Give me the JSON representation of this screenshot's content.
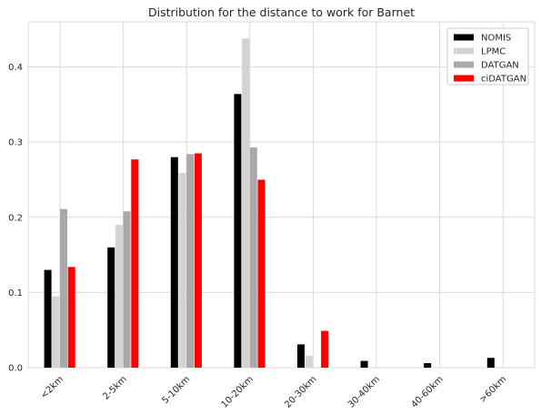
{
  "chart_data": {
    "type": "bar",
    "title": "Distribution for the distance to work for Barnet",
    "xlabel": "",
    "ylabel": "",
    "categories": [
      "<2km",
      "2-5km",
      "5-10km",
      "10-20km",
      "20-30km",
      "30-40km",
      "40-60km",
      ">60km"
    ],
    "series": [
      {
        "name": "NOMIS",
        "color": "#000000",
        "values": [
          0.13,
          0.16,
          0.28,
          0.364,
          0.031,
          0.009,
          0.006,
          0.013
        ]
      },
      {
        "name": "LPMC",
        "color": "#d3d3d3",
        "values": [
          0.095,
          0.19,
          0.259,
          0.438,
          0.016,
          0.0,
          0.0,
          0.0
        ]
      },
      {
        "name": "DATGAN",
        "color": "#a9a9a9",
        "values": [
          0.211,
          0.208,
          0.284,
          0.293,
          0.0,
          0.0,
          0.0,
          0.0
        ]
      },
      {
        "name": "ciDATGAN",
        "color": "#ff0000",
        "values": [
          0.134,
          0.277,
          0.285,
          0.25,
          0.049,
          0.0,
          0.0,
          0.0
        ]
      }
    ],
    "ylim": [
      0,
      0.46
    ],
    "yticks": [
      "0.0",
      "0.1",
      "0.2",
      "0.3",
      "0.4"
    ],
    "grid": true,
    "legend_position": "top-right"
  }
}
